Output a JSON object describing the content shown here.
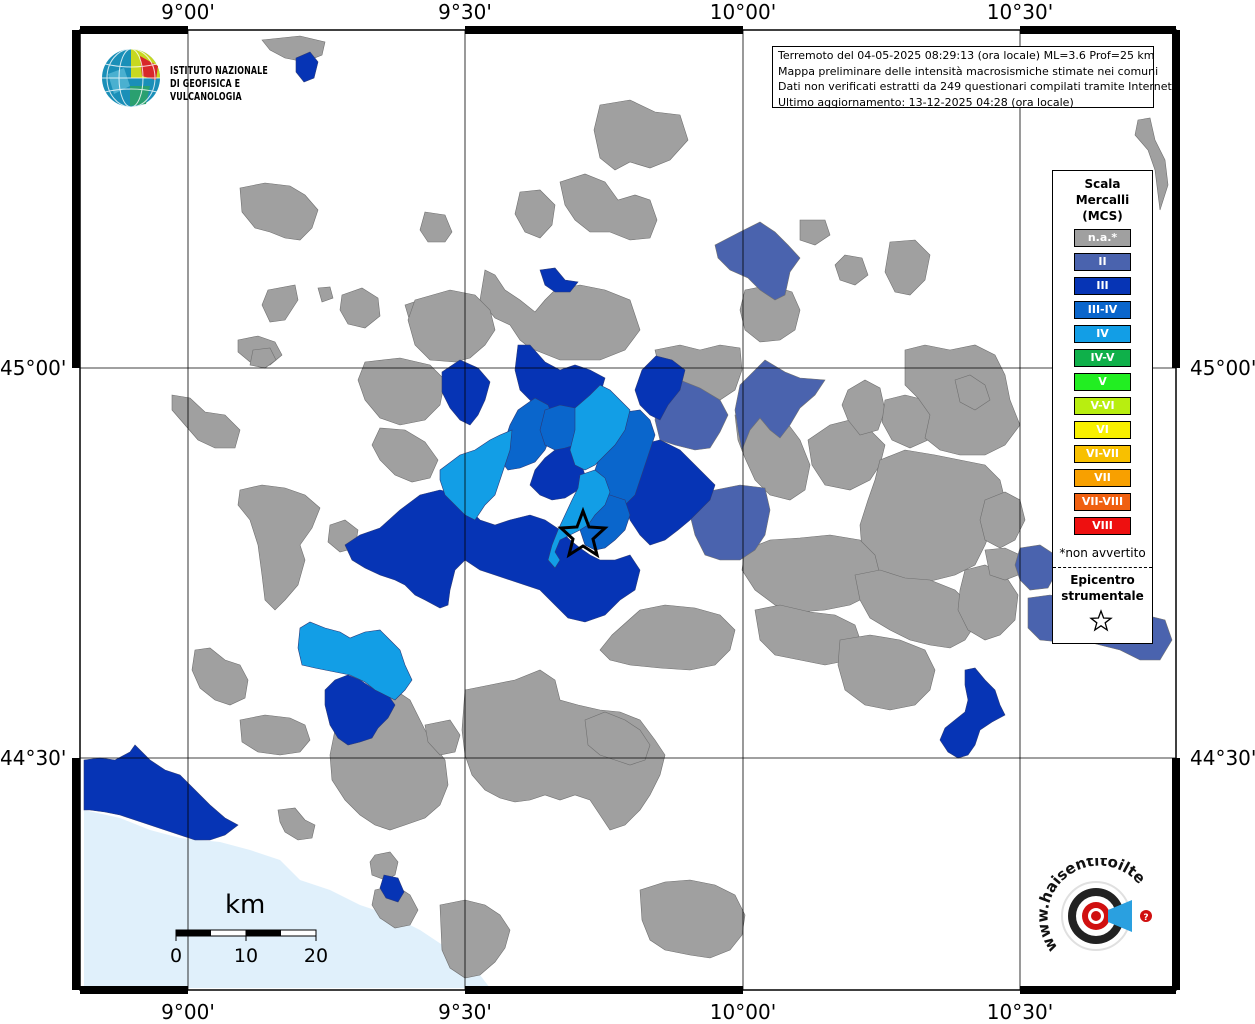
{
  "axes": {
    "lon_labels": [
      "9°00'",
      "9°30'",
      "10°00'",
      "10°30'"
    ],
    "lat_labels": [
      "45°00'",
      "44°30'"
    ]
  },
  "info": {
    "line1": "Terremoto del 04-05-2025 08:29:13 (ora locale) ML=3.6 Prof=25 km",
    "line2": "Mappa preliminare delle intensità macrosismiche stimate nei comuni",
    "line3": "Dati non verificati estratti da 249 questionari compilati tramite Internet.",
    "line4": "Ultimo aggiornamento: 13-12-2025 04:28 (ora locale)"
  },
  "logo_ingv": {
    "line1": "ISTITUTO NAZIONALE",
    "line2": "DI GEOFISICA E VULCANOLOGIA"
  },
  "legend": {
    "title1": "Scala",
    "title2": "Mercalli",
    "title3": "(MCS)",
    "items": [
      {
        "label": "n.a.*",
        "color": "#a0a0a0"
      },
      {
        "label": "II",
        "color": "#4a63ae"
      },
      {
        "label": "III",
        "color": "#0634b5"
      },
      {
        "label": "III-IV",
        "color": "#0a66cc"
      },
      {
        "label": "IV",
        "color": "#129ee6"
      },
      {
        "label": "IV-V",
        "color": "#0fb04a"
      },
      {
        "label": "V",
        "color": "#22ee22"
      },
      {
        "label": "V-VI",
        "color": "#b8ee10"
      },
      {
        "label": "VI",
        "color": "#f8f000"
      },
      {
        "label": "VI-VII",
        "color": "#f8c000"
      },
      {
        "label": "VII",
        "color": "#f8a000"
      },
      {
        "label": "VII-VIII",
        "color": "#f06010"
      },
      {
        "label": "VIII",
        "color": "#ee1010"
      }
    ],
    "note": "*non avvertito",
    "epi1": "Epicentro",
    "epi2": "strumentale"
  },
  "scalebar": {
    "title": "km",
    "ticks": [
      "0",
      "10",
      "20"
    ]
  },
  "logo_hsit": {
    "text": "www.haisentitoilterremoto.it"
  },
  "colors": {
    "na": "#a0a0a0",
    "ii": "#4a63ae",
    "iii": "#0634b5",
    "iii_iv": "#0a66cc",
    "iv": "#129ee6",
    "sea": "#e0f0fb"
  }
}
